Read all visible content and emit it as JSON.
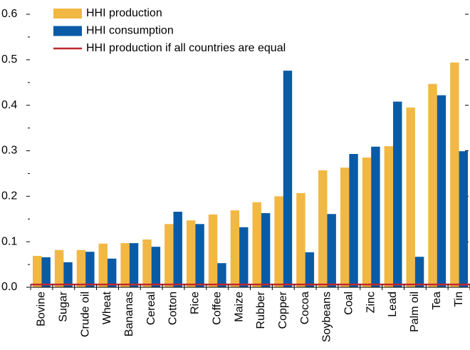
{
  "chart_data": {
    "type": "bar",
    "categories": [
      "Bovine",
      "Sugar",
      "Crude oil",
      "Wheat",
      "Bananas",
      "Cereal",
      "Cotton",
      "Rice",
      "Coffee",
      "Maize",
      "Rubber",
      "Copper",
      "Cocoa",
      "Soybeans",
      "Coal",
      "Zinc",
      "Lead",
      "Palm oil",
      "Tea",
      "Tin"
    ],
    "series": [
      {
        "name": "HHI production",
        "color": "#f2b844",
        "type": "bar",
        "values": [
          0.069,
          0.082,
          0.082,
          0.096,
          0.097,
          0.105,
          0.139,
          0.147,
          0.16,
          0.169,
          0.187,
          0.2,
          0.207,
          0.257,
          0.263,
          0.285,
          0.31,
          0.395,
          0.447,
          0.494
        ]
      },
      {
        "name": "HHI consumption",
        "color": "#0a5ba6",
        "type": "bar",
        "values": [
          0.066,
          0.055,
          0.078,
          0.063,
          0.097,
          0.089,
          0.166,
          0.139,
          0.053,
          0.132,
          0.163,
          0.476,
          0.077,
          0.161,
          0.293,
          0.309,
          0.408,
          0.067,
          0.422,
          0.299
        ]
      },
      {
        "name": "HHI production if all countries are equal",
        "color": "#c0262d",
        "type": "line",
        "values": [
          0.006,
          0.006,
          0.006,
          0.006,
          0.006,
          0.006,
          0.006,
          0.006,
          0.006,
          0.006,
          0.006,
          0.006,
          0.006,
          0.006,
          0.006,
          0.006,
          0.006,
          0.006,
          0.006,
          0.006
        ]
      }
    ],
    "ylim": [
      0,
      0.6
    ],
    "yticks": [
      {
        "value": 0,
        "label": "0.0"
      },
      0.1,
      0.2,
      0.3,
      0.4,
      0.5,
      0.6
    ],
    "yminorticks": [
      0.05,
      0.15,
      0.25,
      0.35,
      0.45,
      0.55
    ],
    "y2lim": [
      0,
      0.6
    ],
    "y2ticks": [
      0,
      0.1,
      0.2,
      0.3,
      0.4,
      0.5,
      0.6
    ],
    "legend": "top-left"
  }
}
